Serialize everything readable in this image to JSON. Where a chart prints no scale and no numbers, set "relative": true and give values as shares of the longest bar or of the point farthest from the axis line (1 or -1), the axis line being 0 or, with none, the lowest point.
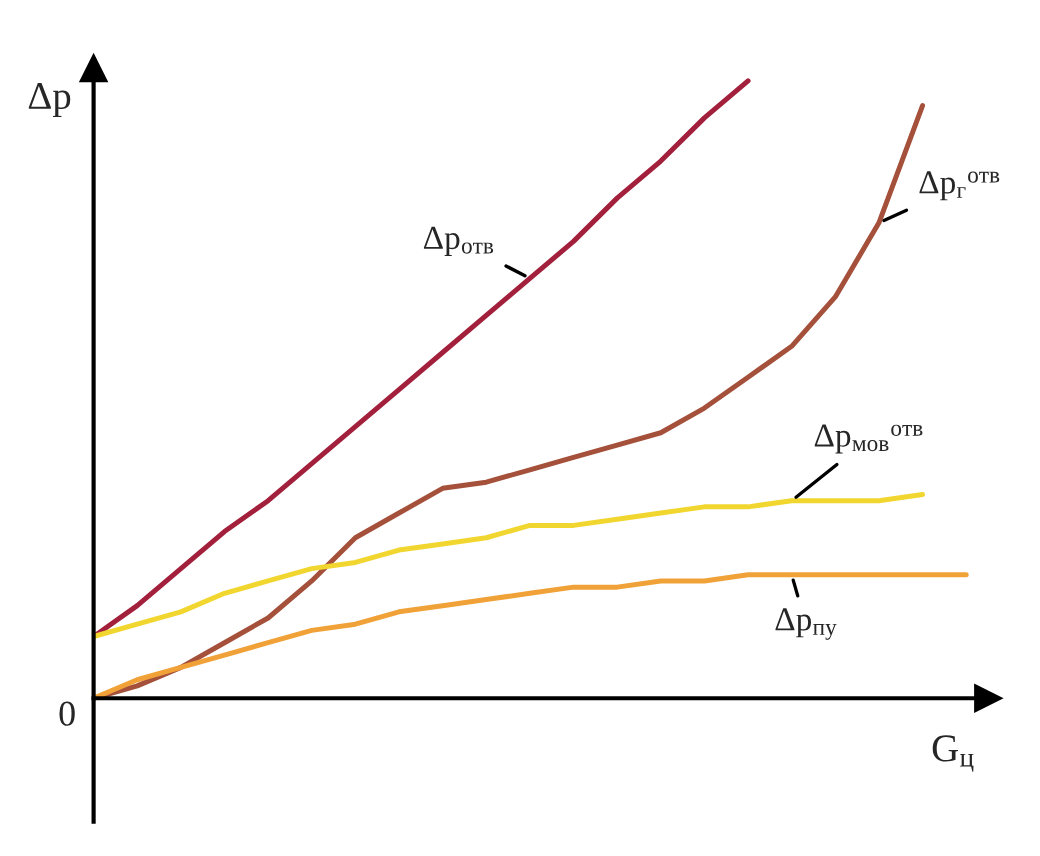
{
  "chart_data": {
    "type": "line",
    "relative": true,
    "xlabel": "G$_{ц}$",
    "ylabel": "Δp",
    "annotations": [
      "0"
    ],
    "categories": [
      null,
      null,
      null,
      null,
      null,
      null,
      null,
      null,
      null,
      null,
      null,
      null,
      null,
      null,
      null,
      null,
      null,
      null,
      null,
      null,
      null
    ],
    "series": [
      {
        "name": "Δp$_{отв}$",
        "color": "#a3203c",
        "values": [
          0.1,
          0.15,
          0.21,
          0.27,
          0.32,
          0.38,
          0.44,
          0.5,
          0.56,
          0.62,
          0.68,
          0.74,
          0.81,
          0.87,
          0.94,
          1.0,
          null,
          null,
          null,
          null,
          null
        ]
      },
      {
        "name": "Δp$_{г}$$^{отв}$",
        "color": "#a4503a",
        "values": [
          0,
          0.02,
          0.05,
          0.09,
          0.13,
          0.19,
          0.26,
          0.3,
          0.34,
          0.35,
          0.37,
          0.39,
          0.41,
          0.43,
          0.47,
          0.52,
          0.57,
          0.65,
          0.77,
          0.96,
          null
        ]
      },
      {
        "name": "Δp$_{мов}$$^{отв}$",
        "color": "#f2d630",
        "values": [
          0.1,
          0.12,
          0.14,
          0.17,
          0.19,
          0.21,
          0.22,
          0.24,
          0.25,
          0.26,
          0.28,
          0.28,
          0.29,
          0.3,
          0.31,
          0.31,
          0.32,
          0.32,
          0.32,
          0.33,
          null
        ]
      },
      {
        "name": "Δp$_{пу}$",
        "color": "#f0a238",
        "values": [
          0,
          0.03,
          0.05,
          0.07,
          0.09,
          0.11,
          0.12,
          0.14,
          0.15,
          0.16,
          0.17,
          0.18,
          0.18,
          0.19,
          0.19,
          0.2,
          0.2,
          0.2,
          0.2,
          0.2,
          0.2
        ]
      }
    ]
  }
}
